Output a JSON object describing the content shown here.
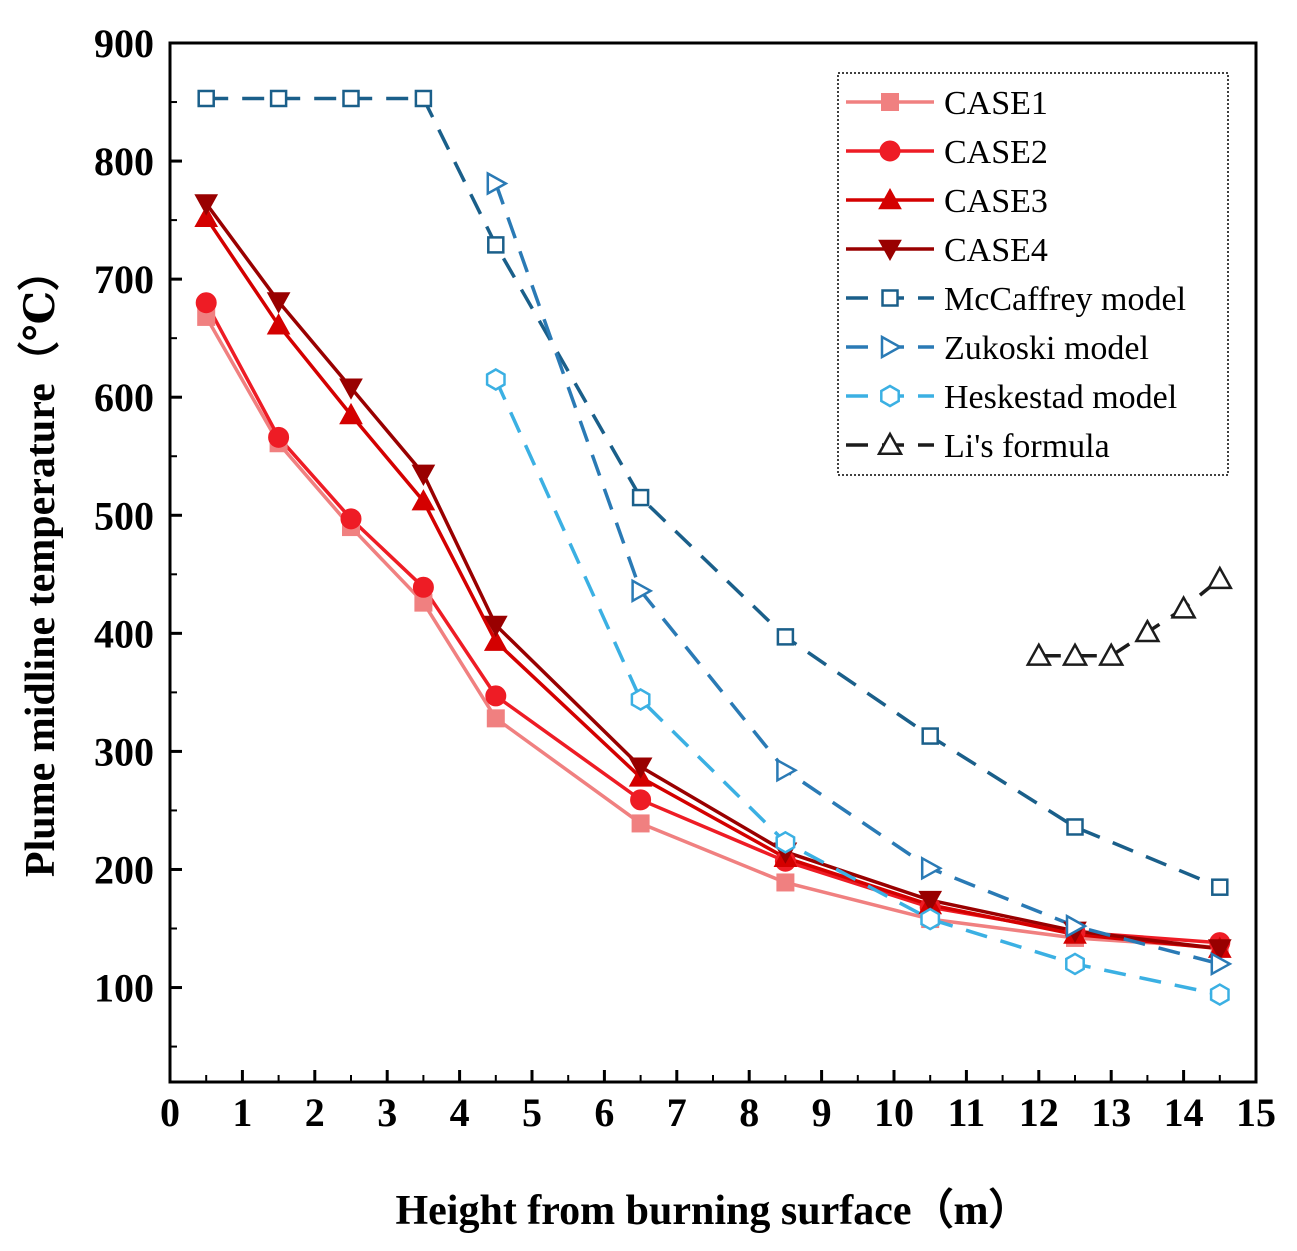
{
  "chart_data": {
    "type": "line",
    "title": "",
    "xlabel": "Height from burning surface（m）",
    "ylabel": "Plume midline temperature（℃）",
    "xlim": [
      0,
      15
    ],
    "ylim": [
      20,
      900
    ],
    "xticks": [
      0,
      1,
      2,
      3,
      4,
      5,
      6,
      7,
      8,
      9,
      10,
      11,
      12,
      13,
      14,
      15
    ],
    "yticks": [
      100,
      200,
      300,
      400,
      500,
      600,
      700,
      800,
      900
    ],
    "legend_position": "top-right",
    "series": [
      {
        "name": "CASE1",
        "color": "#F08080",
        "marker": "square-filled",
        "dash": "solid",
        "x": [
          0.5,
          1.5,
          2.5,
          3.5,
          4.5,
          6.5,
          8.5,
          10.5,
          12.5,
          14.5
        ],
        "y": [
          668,
          561,
          490,
          426,
          328,
          239,
          189,
          158,
          142,
          134
        ]
      },
      {
        "name": "CASE2",
        "color": "#EE1C25",
        "marker": "circle-filled",
        "dash": "solid",
        "x": [
          0.5,
          1.5,
          2.5,
          3.5,
          4.5,
          6.5,
          8.5,
          10.5,
          12.5,
          14.5
        ],
        "y": [
          680,
          566,
          497,
          439,
          347,
          259,
          207,
          168,
          147,
          138
        ]
      },
      {
        "name": "CASE3",
        "color": "#D40000",
        "marker": "triangle-up-filled",
        "dash": "solid",
        "x": [
          0.5,
          1.5,
          2.5,
          3.5,
          4.5,
          6.5,
          8.5,
          10.5,
          12.5,
          14.5
        ],
        "y": [
          752,
          661,
          585,
          512,
          393,
          278,
          210,
          170,
          145,
          133
        ]
      },
      {
        "name": "CASE4",
        "color": "#990000",
        "marker": "triangle-down-filled",
        "dash": "solid",
        "x": [
          0.5,
          1.5,
          2.5,
          3.5,
          4.5,
          6.5,
          8.5,
          10.5,
          12.5,
          14.5
        ],
        "y": [
          764,
          681,
          608,
          535,
          407,
          287,
          215,
          174,
          148,
          133
        ]
      },
      {
        "name": "McCaffrey model",
        "color": "#1A5F8A",
        "marker": "square-open",
        "dash": "dashed",
        "x": [
          0.5,
          1.5,
          2.5,
          3.5,
          4.5,
          6.5,
          8.5,
          10.5,
          12.5,
          14.5
        ],
        "y": [
          853,
          853,
          853,
          853,
          729,
          515,
          397,
          313,
          236,
          185
        ]
      },
      {
        "name": "Zukoski model",
        "color": "#2A7AB5",
        "marker": "triangle-right-open",
        "dash": "dashed",
        "x": [
          4.5,
          6.5,
          8.5,
          10.5,
          12.5,
          14.5
        ],
        "y": [
          781,
          436,
          284,
          201,
          152,
          120
        ]
      },
      {
        "name": "Heskestad model",
        "color": "#3BB0E3",
        "marker": "hexagon-open",
        "dash": "dashed",
        "x": [
          4.5,
          6.5,
          8.5,
          10.5,
          12.5,
          14.5
        ],
        "y": [
          615,
          344,
          223,
          158,
          120,
          94
        ]
      },
      {
        "name": "Li's formula",
        "color": "#1C1C1C",
        "marker": "triangle-up-open",
        "dash": "dashed",
        "x": [
          12,
          12.5,
          13,
          13.5,
          14,
          14.5
        ],
        "y": [
          381,
          381,
          381,
          401,
          421,
          446
        ]
      }
    ]
  }
}
